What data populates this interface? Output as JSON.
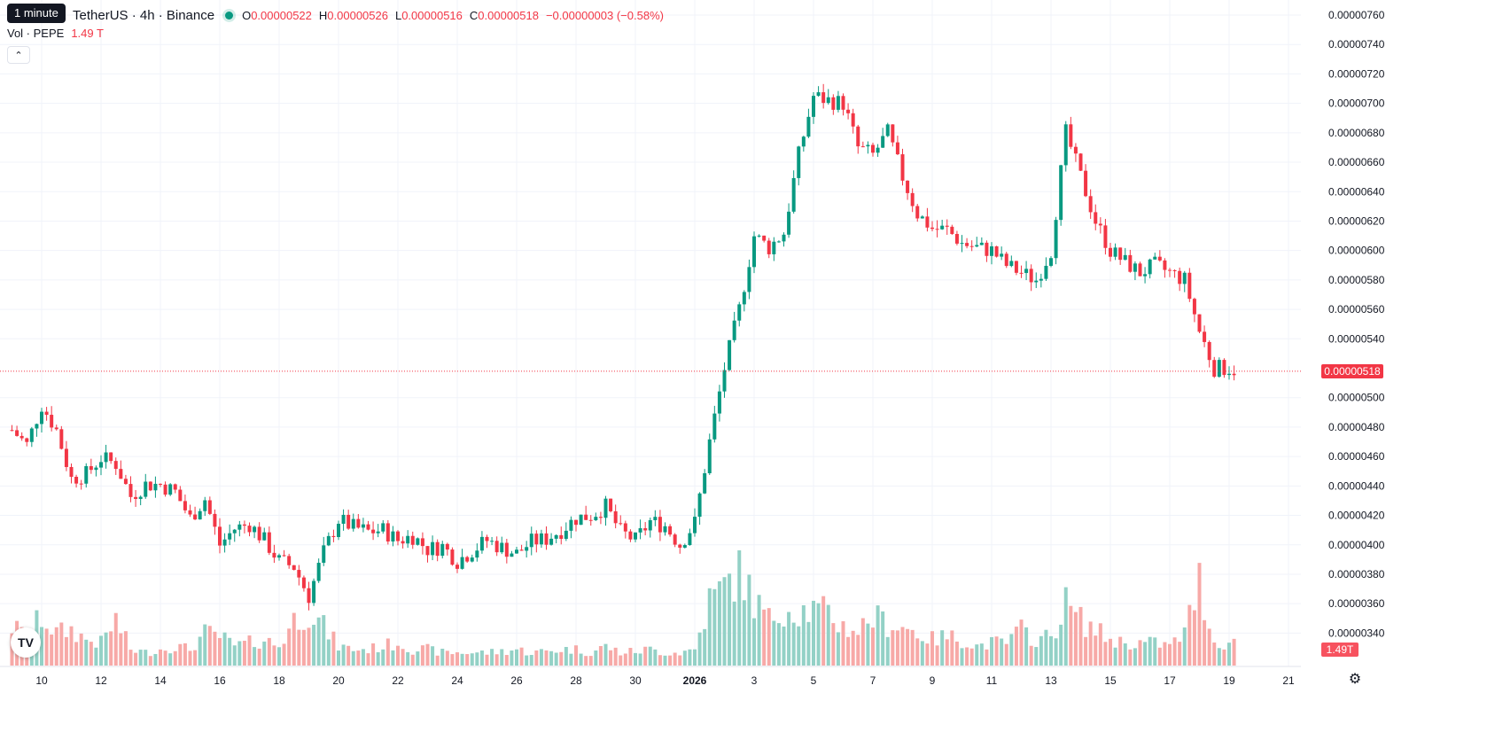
{
  "tooltip": "1 minute",
  "symbol": {
    "name": "TetherUS · 4h · Binance"
  },
  "ohlc": {
    "o_label": "O",
    "o_value": "0.00000522",
    "h_label": "H",
    "h_value": "0.00000526",
    "l_label": "L",
    "l_value": "0.00000516",
    "c_label": "C",
    "c_value": "0.00000518",
    "change": "−0.00000003 (−0.58%)"
  },
  "volume": {
    "label": "Vol · PEPE",
    "value": "1.49 T"
  },
  "price_scale": {
    "ticks": [
      "0.00000760",
      "0.00000740",
      "0.00000720",
      "0.00000700",
      "0.00000680",
      "0.00000660",
      "0.00000640",
      "0.00000620",
      "0.00000600",
      "0.00000580",
      "0.00000560",
      "0.00000540",
      "0.00000500",
      "0.00000480",
      "0.00000460",
      "0.00000440",
      "0.00000420",
      "0.00000400",
      "0.00000380",
      "0.00000360",
      "0.00000340"
    ],
    "last_price": "0.00000518",
    "last_volume": "1.49T"
  },
  "time_scale": {
    "ticks": [
      "10",
      "12",
      "14",
      "16",
      "18",
      "20",
      "22",
      "24",
      "26",
      "28",
      "30",
      "2026",
      "3",
      "5",
      "7",
      "9",
      "11",
      "13",
      "15",
      "17",
      "19",
      "21"
    ]
  },
  "colors": {
    "up": "#089981",
    "down": "#f23645",
    "up_volume": "#93d1c6",
    "down_volume": "#f7a9a7",
    "grid": "#f0f3fa"
  },
  "icons": {
    "logo": "tradingview-logo-icon",
    "settings": "gear-icon",
    "collapse": "chevron-up-icon"
  },
  "chart_data": {
    "type": "candlestick",
    "interval": "4h",
    "ylim": [
      3.3e-06,
      7.6e-06
    ],
    "x_ticks": [
      "10",
      "12",
      "14",
      "16",
      "18",
      "20",
      "22",
      "24",
      "26",
      "28",
      "30",
      "2026",
      "3",
      "5",
      "7",
      "9",
      "11",
      "13",
      "15",
      "17",
      "19",
      "21"
    ],
    "close_path_days": [
      [
        9.0,
        4.78e-06
      ],
      [
        9.5,
        4.68e-06
      ],
      [
        10.0,
        4.95e-06
      ],
      [
        10.5,
        4.78e-06
      ],
      [
        11.0,
        4.45e-06
      ],
      [
        11.5,
        4.48e-06
      ],
      [
        12.0,
        4.59e-06
      ],
      [
        12.5,
        4.55e-06
      ],
      [
        13.0,
        4.33e-06
      ],
      [
        13.5,
        4.41e-06
      ],
      [
        14.0,
        4.41e-06
      ],
      [
        14.5,
        4.36e-06
      ],
      [
        15.0,
        4.18e-06
      ],
      [
        15.5,
        4.31e-06
      ],
      [
        16.0,
        4e-06
      ],
      [
        16.5,
        4.11e-06
      ],
      [
        17.0,
        4.14e-06
      ],
      [
        17.5,
        4.03e-06
      ],
      [
        18.0,
        3.89e-06
      ],
      [
        18.5,
        3.85e-06
      ],
      [
        19.0,
        3.65e-06
      ],
      [
        19.5,
        3.95e-06
      ],
      [
        20.0,
        4.17e-06
      ],
      [
        20.5,
        4.12e-06
      ],
      [
        21.0,
        4.09e-06
      ],
      [
        21.5,
        4.1e-06
      ],
      [
        22.0,
        4.03e-06
      ],
      [
        22.5,
        4.06e-06
      ],
      [
        23.0,
        3.97e-06
      ],
      [
        23.5,
        3.99e-06
      ],
      [
        24.0,
        3.89e-06
      ],
      [
        24.5,
        3.96e-06
      ],
      [
        25.0,
        4.03e-06
      ],
      [
        25.5,
        3.98e-06
      ],
      [
        26.0,
        3.94e-06
      ],
      [
        26.5,
        4.02e-06
      ],
      [
        27.0,
        4.04e-06
      ],
      [
        27.5,
        4.1e-06
      ],
      [
        28.0,
        4.18e-06
      ],
      [
        28.5,
        4.2e-06
      ],
      [
        29.0,
        4.26e-06
      ],
      [
        29.5,
        4.09e-06
      ],
      [
        30.0,
        4.03e-06
      ],
      [
        30.5,
        4.16e-06
      ],
      [
        31.0,
        4.13e-06
      ],
      [
        31.5,
        4e-06
      ],
      [
        32.0,
        4.15e-06
      ],
      [
        32.5,
        4.7e-06
      ],
      [
        33.0,
        5.2e-06
      ],
      [
        33.5,
        5.6e-06
      ],
      [
        34.0,
        6.1e-06
      ],
      [
        34.5,
        6.02e-06
      ],
      [
        35.0,
        6.12e-06
      ],
      [
        35.5,
        6.65e-06
      ],
      [
        36.0,
        7.05e-06
      ],
      [
        36.5,
        7.02e-06
      ],
      [
        37.0,
        7e-06
      ],
      [
        37.5,
        6.7e-06
      ],
      [
        38.0,
        6.65e-06
      ],
      [
        38.5,
        6.8e-06
      ],
      [
        39.0,
        6.5e-06
      ],
      [
        39.5,
        6.25e-06
      ],
      [
        40.0,
        6.15e-06
      ],
      [
        40.5,
        6.14e-06
      ],
      [
        41.0,
        6.05e-06
      ],
      [
        41.5,
        6.02e-06
      ],
      [
        42.0,
        6e-06
      ],
      [
        42.5,
        5.9e-06
      ],
      [
        43.0,
        5.85e-06
      ],
      [
        43.5,
        5.8e-06
      ],
      [
        44.0,
        6e-06
      ],
      [
        44.5,
        6.8e-06
      ],
      [
        45.0,
        6.5e-06
      ],
      [
        45.5,
        6.2e-06
      ],
      [
        46.0,
        6e-06
      ],
      [
        46.5,
        5.92e-06
      ],
      [
        47.0,
        5.85e-06
      ],
      [
        47.5,
        5.9e-06
      ],
      [
        48.0,
        5.85e-06
      ],
      [
        48.5,
        5.8e-06
      ],
      [
        49.0,
        5.45e-06
      ],
      [
        49.5,
        5.2e-06
      ],
      [
        50.0,
        5.2e-06
      ],
      [
        50.3,
        5.18e-06
      ]
    ],
    "volume_path_days": [
      [
        9.0,
        0.6
      ],
      [
        9.5,
        0.45
      ],
      [
        10.0,
        0.75
      ],
      [
        10.5,
        0.5
      ],
      [
        11.0,
        0.55
      ],
      [
        11.5,
        0.4
      ],
      [
        12.0,
        0.35
      ],
      [
        12.5,
        0.7
      ],
      [
        13.0,
        0.25
      ],
      [
        13.5,
        0.2
      ],
      [
        14.0,
        0.25
      ],
      [
        14.5,
        0.3
      ],
      [
        15.0,
        0.25
      ],
      [
        15.5,
        0.5
      ],
      [
        16.0,
        0.45
      ],
      [
        16.5,
        0.3
      ],
      [
        17.0,
        0.35
      ],
      [
        17.5,
        0.4
      ],
      [
        18.0,
        0.3
      ],
      [
        18.5,
        0.7
      ],
      [
        19.0,
        0.85
      ],
      [
        19.5,
        0.6
      ],
      [
        20.0,
        0.3
      ],
      [
        20.5,
        0.25
      ],
      [
        21.0,
        0.25
      ],
      [
        21.5,
        0.3
      ],
      [
        22.0,
        0.35
      ],
      [
        22.5,
        0.25
      ],
      [
        23.0,
        0.25
      ],
      [
        23.5,
        0.2
      ],
      [
        24.0,
        0.2
      ],
      [
        24.5,
        0.2
      ],
      [
        25.0,
        0.2
      ],
      [
        25.5,
        0.22
      ],
      [
        26.0,
        0.25
      ],
      [
        26.5,
        0.2
      ],
      [
        27.0,
        0.22
      ],
      [
        27.5,
        0.25
      ],
      [
        28.0,
        0.25
      ],
      [
        28.5,
        0.2
      ],
      [
        29.0,
        0.3
      ],
      [
        29.5,
        0.2
      ],
      [
        30.0,
        0.22
      ],
      [
        30.5,
        0.25
      ],
      [
        31.0,
        0.2
      ],
      [
        31.5,
        0.2
      ],
      [
        32.0,
        0.25
      ],
      [
        32.5,
        1.0
      ],
      [
        33.0,
        1.2
      ],
      [
        33.5,
        1.5
      ],
      [
        34.0,
        1.0
      ],
      [
        34.5,
        0.7
      ],
      [
        35.0,
        0.9
      ],
      [
        35.5,
        0.85
      ],
      [
        36.0,
        0.85
      ],
      [
        36.5,
        0.8
      ],
      [
        37.0,
        0.6
      ],
      [
        37.5,
        0.55
      ],
      [
        38.0,
        0.75
      ],
      [
        38.5,
        0.65
      ],
      [
        39.0,
        0.6
      ],
      [
        39.5,
        0.5
      ],
      [
        40.0,
        0.4
      ],
      [
        40.5,
        0.45
      ],
      [
        41.0,
        0.4
      ],
      [
        41.5,
        0.3
      ],
      [
        42.0,
        0.35
      ],
      [
        42.5,
        0.35
      ],
      [
        43.0,
        0.55
      ],
      [
        43.5,
        0.4
      ],
      [
        44.0,
        0.45
      ],
      [
        44.5,
        0.95
      ],
      [
        45.0,
        0.7
      ],
      [
        45.5,
        0.55
      ],
      [
        46.0,
        0.4
      ],
      [
        46.5,
        0.35
      ],
      [
        47.0,
        0.35
      ],
      [
        47.5,
        0.35
      ],
      [
        48.0,
        0.3
      ],
      [
        48.5,
        0.5
      ],
      [
        49.0,
        1.3
      ],
      [
        49.5,
        0.35
      ],
      [
        50.0,
        0.35
      ],
      [
        50.3,
        0.35
      ]
    ]
  }
}
